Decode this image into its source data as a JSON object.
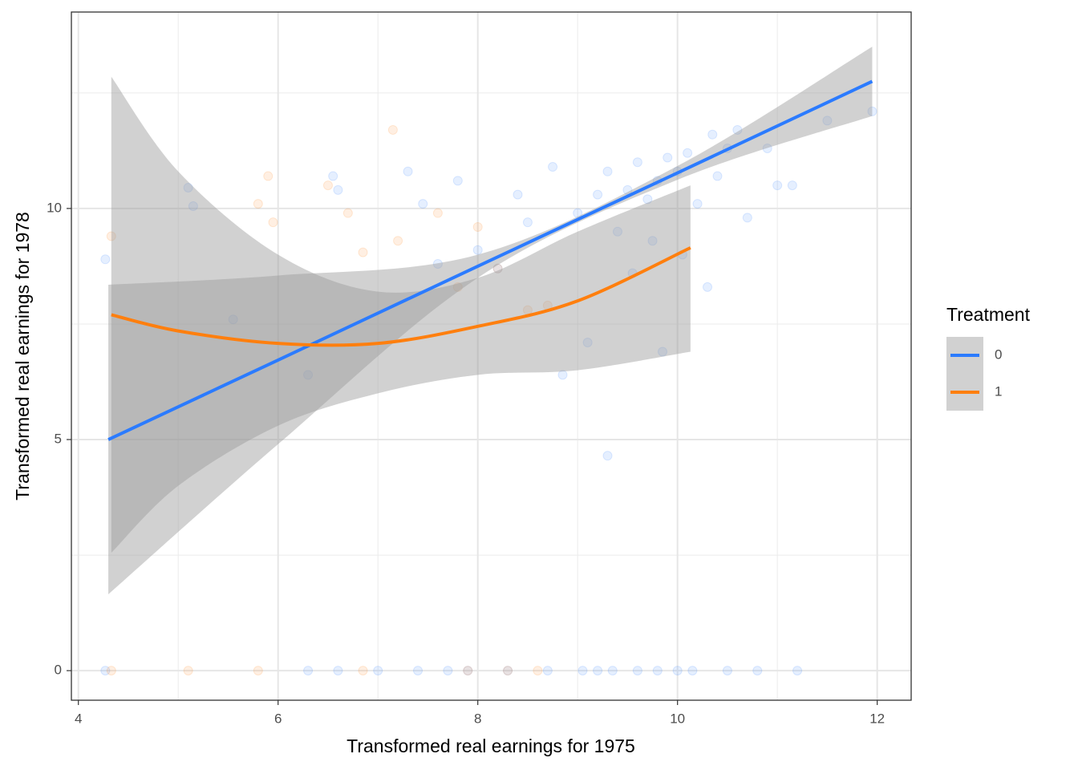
{
  "chart_data": {
    "type": "scatter",
    "x_label": "Transformed real earnings for 1975",
    "y_label": "Transformed real earnings for 1978",
    "legend_title": "Treatment",
    "legend_position": "right",
    "grid": true,
    "xlim": [
      3.93,
      12.34
    ],
    "ylim": [
      -0.64,
      14.25
    ],
    "xticks": [
      4,
      6,
      8,
      10,
      12
    ],
    "yticks": [
      0,
      5,
      10
    ],
    "band_color": "#999999",
    "series": [
      {
        "name": "0",
        "color": "#2b7bff",
        "x": [
          4.27,
          5.1,
          5.15,
          5.55,
          6.3,
          6.55,
          6.6,
          7.3,
          7.45,
          7.6,
          7.8,
          8.0,
          8.2,
          8.4,
          8.5,
          8.75,
          8.85,
          9.0,
          9.1,
          9.2,
          9.3,
          9.3,
          9.4,
          9.5,
          9.55,
          9.6,
          9.7,
          9.75,
          9.8,
          9.85,
          9.9,
          10.0,
          10.05,
          10.1,
          10.2,
          10.3,
          10.35,
          10.4,
          10.5,
          10.6,
          10.7,
          10.9,
          11.0,
          11.15,
          11.5,
          11.95,
          4.27,
          6.3,
          6.6,
          7.0,
          7.4,
          7.7,
          7.9,
          8.3,
          8.7,
          9.05,
          9.2,
          9.35,
          9.6,
          9.8,
          10.0,
          10.15,
          10.5,
          10.8,
          11.2
        ],
        "y": [
          8.9,
          10.45,
          10.05,
          7.6,
          6.4,
          10.7,
          10.4,
          10.8,
          10.1,
          8.8,
          10.6,
          9.1,
          8.7,
          10.3,
          9.7,
          10.9,
          6.4,
          9.9,
          7.1,
          10.3,
          4.65,
          10.8,
          9.5,
          10.4,
          8.6,
          11.0,
          10.2,
          9.3,
          10.6,
          6.9,
          11.1,
          10.8,
          9.0,
          11.2,
          10.1,
          8.3,
          11.6,
          10.7,
          11.3,
          11.7,
          9.8,
          11.3,
          10.5,
          10.5,
          11.9,
          12.1,
          0,
          0,
          0,
          0,
          0,
          0,
          0,
          0,
          0,
          0,
          0,
          0,
          0,
          0,
          0,
          0,
          0,
          0,
          0
        ],
        "fit_x": [
          4.3,
          6,
          8,
          10,
          11.95
        ],
        "fit": [
          5.0,
          6.72,
          8.75,
          10.77,
          12.75
        ],
        "fit_lower": [
          1.65,
          4.9,
          8.5,
          10.62,
          12.0
        ],
        "fit_upper": [
          8.35,
          8.55,
          9.0,
          10.92,
          13.5
        ]
      },
      {
        "name": "1",
        "color": "#ff7f0e",
        "x": [
          4.33,
          5.8,
          5.9,
          5.95,
          6.5,
          6.7,
          6.85,
          7.15,
          7.2,
          7.6,
          7.8,
          8.0,
          8.2,
          8.5,
          8.7,
          4.33,
          5.1,
          5.8,
          6.85,
          7.9,
          8.3,
          8.6
        ],
        "y": [
          9.4,
          10.1,
          10.7,
          9.7,
          10.5,
          9.9,
          9.05,
          11.7,
          9.3,
          9.9,
          8.3,
          9.6,
          8.7,
          7.8,
          7.9,
          0,
          0,
          0,
          0,
          0,
          0,
          0
        ],
        "fit_x": [
          4.33,
          5,
          6,
          7,
          8,
          9,
          10.13
        ],
        "fit": [
          7.7,
          7.35,
          7.08,
          7.08,
          7.45,
          8.0,
          9.15
        ],
        "fit_lower": [
          2.55,
          4.0,
          5.3,
          6.0,
          6.4,
          6.5,
          6.9
        ],
        "fit_upper": [
          12.85,
          10.8,
          9.0,
          8.2,
          8.5,
          9.5,
          10.5
        ]
      }
    ]
  }
}
